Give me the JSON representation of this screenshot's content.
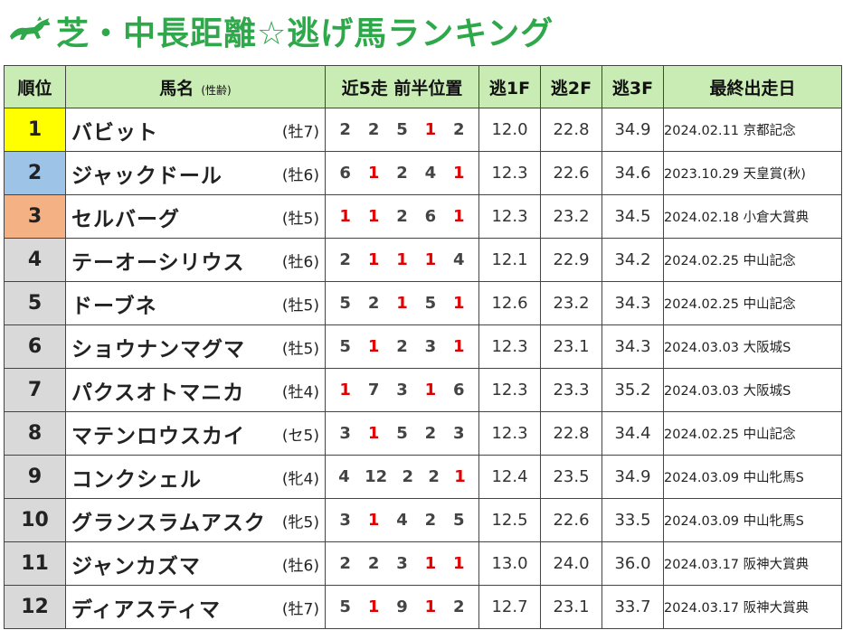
{
  "title": "芝・中長距離☆逃げ馬ランキング",
  "colors": {
    "title": "#2ea84a",
    "header_bg": "#c8ecb4",
    "rank1": "#ffff00",
    "rank2": "#9dc3e6",
    "rank3": "#f4b183",
    "rank_other": "#d9d9d9",
    "highlight_one": "#e00000"
  },
  "icons": {
    "title_icon": "running-horse-icon"
  },
  "headers": {
    "rank": "順位",
    "name": "馬名",
    "name_sub": "(性齢)",
    "positions": "近5走 前半位置",
    "f1": "逃1F",
    "f2": "逃2F",
    "f3": "逃3F",
    "last": "最終出走日"
  },
  "rows": [
    {
      "rank": "1",
      "name": "バビット",
      "sex": "(牡7)",
      "pos": [
        "2",
        "2",
        "5",
        "1",
        "2"
      ],
      "f1": "12.0",
      "f2": "22.8",
      "f3": "34.9",
      "last": "2024.02.11 京都記念"
    },
    {
      "rank": "2",
      "name": "ジャックドール",
      "sex": "(牡6)",
      "pos": [
        "6",
        "1",
        "2",
        "4",
        "1"
      ],
      "f1": "12.3",
      "f2": "22.6",
      "f3": "34.6",
      "last": "2023.10.29 天皇賞(秋)"
    },
    {
      "rank": "3",
      "name": "セルバーグ",
      "sex": "(牡5)",
      "pos": [
        "1",
        "1",
        "2",
        "6",
        "1"
      ],
      "f1": "12.3",
      "f2": "23.2",
      "f3": "34.5",
      "last": "2024.02.18 小倉大賞典"
    },
    {
      "rank": "4",
      "name": "テーオーシリウス",
      "sex": "(牡6)",
      "pos": [
        "2",
        "1",
        "1",
        "1",
        "4"
      ],
      "f1": "12.1",
      "f2": "22.9",
      "f3": "34.2",
      "last": "2024.02.25 中山記念"
    },
    {
      "rank": "5",
      "name": "ドーブネ",
      "sex": "(牡5)",
      "pos": [
        "5",
        "2",
        "1",
        "5",
        "1"
      ],
      "f1": "12.6",
      "f2": "23.2",
      "f3": "34.3",
      "last": "2024.02.25 中山記念"
    },
    {
      "rank": "6",
      "name": "ショウナンマグマ",
      "sex": "(牡5)",
      "pos": [
        "5",
        "1",
        "2",
        "3",
        "1"
      ],
      "f1": "12.3",
      "f2": "23.1",
      "f3": "34.3",
      "last": "2024.03.03 大阪城S"
    },
    {
      "rank": "7",
      "name": "パクスオトマニカ",
      "sex": "(牡4)",
      "pos": [
        "1",
        "7",
        "3",
        "1",
        "6"
      ],
      "f1": "12.3",
      "f2": "23.3",
      "f3": "35.2",
      "last": "2024.03.03 大阪城S"
    },
    {
      "rank": "8",
      "name": "マテンロウスカイ",
      "sex": "(セ5)",
      "pos": [
        "3",
        "1",
        "5",
        "2",
        "3"
      ],
      "f1": "12.3",
      "f2": "22.8",
      "f3": "34.4",
      "last": "2024.02.25 中山記念"
    },
    {
      "rank": "9",
      "name": "コンクシェル",
      "sex": "(牝4)",
      "pos": [
        "4",
        "12",
        "2",
        "2",
        "1"
      ],
      "f1": "12.4",
      "f2": "23.5",
      "f3": "34.9",
      "last": "2024.03.09 中山牝馬S"
    },
    {
      "rank": "10",
      "name": "グランスラムアスク",
      "sex": "(牝5)",
      "pos": [
        "3",
        "1",
        "4",
        "2",
        "5"
      ],
      "f1": "12.5",
      "f2": "22.6",
      "f3": "33.5",
      "last": "2024.03.09 中山牝馬S"
    },
    {
      "rank": "11",
      "name": "ジャンカズマ",
      "sex": "(牡6)",
      "pos": [
        "2",
        "2",
        "3",
        "1",
        "1"
      ],
      "f1": "13.0",
      "f2": "24.0",
      "f3": "36.0",
      "last": "2024.03.17 阪神大賞典"
    },
    {
      "rank": "12",
      "name": "ディアスティマ",
      "sex": "(牡7)",
      "pos": [
        "5",
        "1",
        "9",
        "1",
        "2"
      ],
      "f1": "12.7",
      "f2": "23.1",
      "f3": "33.7",
      "last": "2024.03.17 阪神大賞典"
    }
  ]
}
